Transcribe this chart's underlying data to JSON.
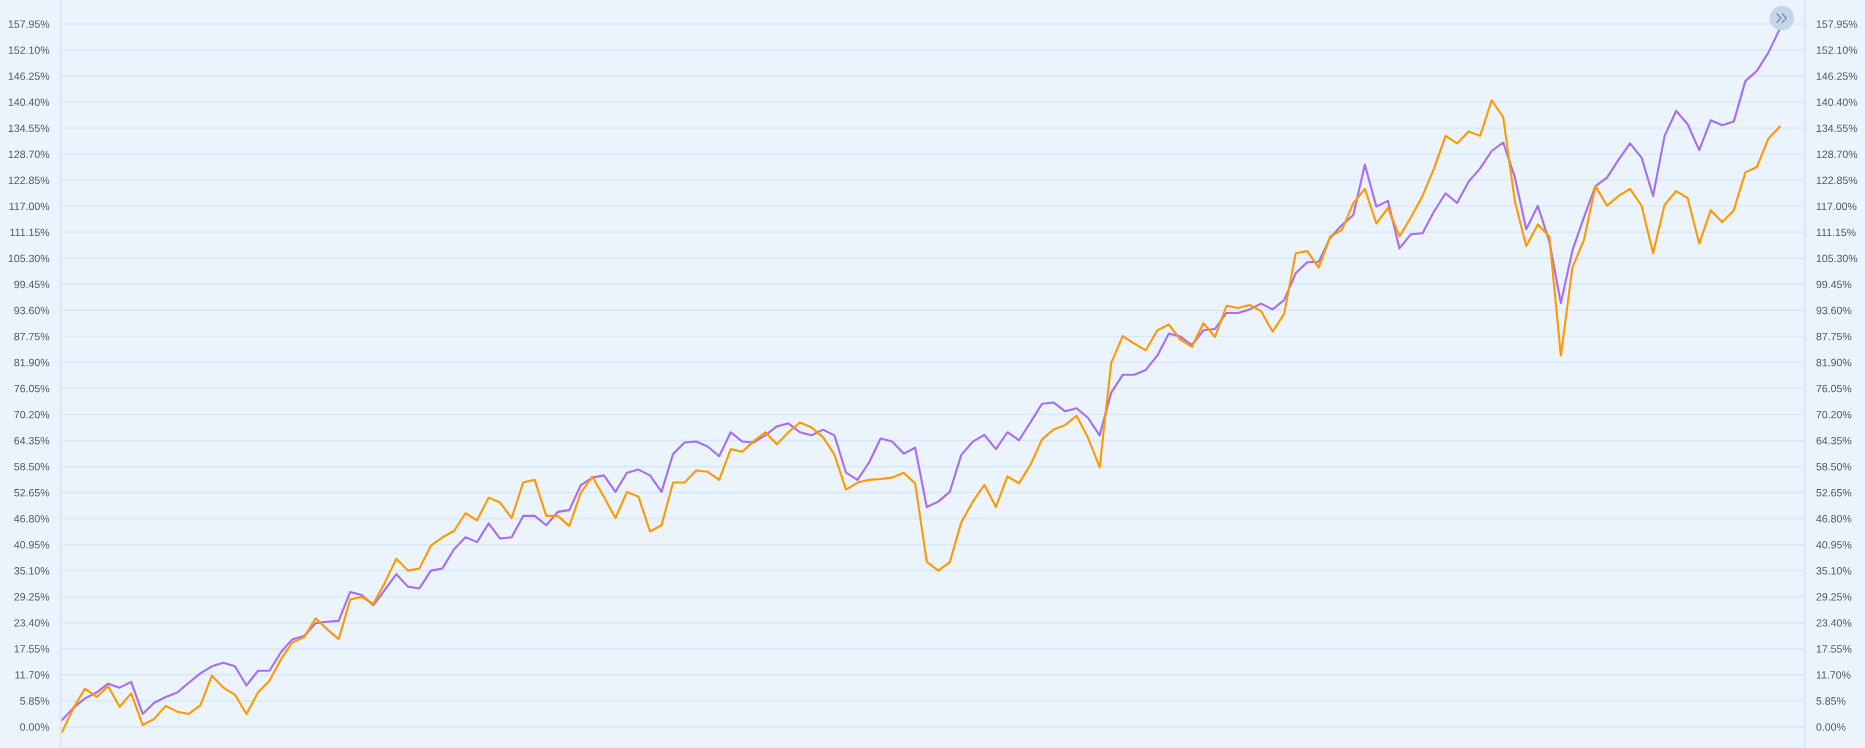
{
  "chart_data": {
    "type": "line",
    "categories": [
      null,
      null,
      null,
      null,
      null,
      null,
      null,
      null,
      null,
      null,
      null,
      null,
      null,
      null,
      null,
      null,
      null,
      null,
      null,
      null,
      null,
      null,
      null,
      null,
      null,
      null,
      null,
      null,
      null,
      null,
      null,
      null,
      null,
      null,
      null,
      null,
      null,
      null,
      null,
      null,
      null,
      null,
      null,
      null,
      null,
      null,
      null,
      null,
      null,
      null,
      null,
      null,
      null,
      null,
      null,
      null,
      null,
      null,
      null,
      null,
      null,
      null,
      null,
      null,
      null,
      null,
      null,
      null,
      null,
      null,
      null,
      null,
      null,
      null,
      null,
      null,
      null,
      null,
      null,
      null,
      null,
      null,
      null,
      null,
      null,
      null,
      null,
      null,
      null,
      null,
      null,
      null,
      null,
      null,
      null,
      null,
      null,
      null,
      null,
      null,
      null,
      null,
      null,
      null,
      null,
      null,
      null,
      null,
      null,
      null,
      null,
      null,
      null,
      null,
      null,
      null,
      null,
      null,
      null,
      null,
      null,
      null,
      null,
      null,
      null,
      null,
      null,
      null,
      null,
      null,
      null,
      null,
      null,
      null,
      null,
      null,
      null,
      null,
      null,
      null,
      null,
      null,
      null,
      null,
      null,
      null,
      null,
      null,
      null,
      null
    ],
    "series": [
      {
        "color": "#a66ef0",
        "values": [
          1.5,
          4.3,
          6.4,
          7.7,
          9.7,
          8.8,
          10.1,
          2.9,
          5.4,
          6.7,
          7.7,
          9.9,
          12.0,
          13.6,
          14.4,
          13.6,
          9.3,
          12.6,
          12.6,
          16.8,
          19.7,
          20.4,
          23.3,
          23.6,
          23.8,
          30.3,
          29.6,
          27.3,
          30.8,
          34.3,
          31.5,
          31.1,
          35.1,
          35.6,
          39.9,
          42.6,
          41.5,
          45.7,
          42.3,
          42.6,
          47.4,
          47.4,
          45.3,
          48.3,
          48.7,
          54.3,
          56.0,
          56.5,
          52.8,
          57.1,
          57.8,
          56.5,
          52.8,
          61.3,
          63.9,
          64.1,
          63.0,
          60.8,
          66.2,
          64.1,
          63.9,
          65.5,
          67.5,
          68.2,
          66.2,
          65.5,
          66.8,
          65.5,
          57.1,
          55.5,
          59.4,
          64.8,
          64.1,
          61.4,
          62.7,
          49.4,
          50.6,
          52.8,
          61.1,
          64.1,
          65.6,
          62.4,
          66.2,
          64.4,
          68.4,
          72.6,
          72.9,
          70.9,
          71.6,
          69.4,
          65.5,
          75.1,
          79.1,
          79.1,
          80.2,
          83.4,
          88.4,
          87.7,
          85.8,
          89.1,
          89.4,
          93.0,
          93.0,
          93.8,
          95.1,
          93.8,
          95.9,
          101.9,
          104.4,
          104.5,
          109.9,
          112.7,
          115.0,
          126.3,
          116.9,
          118.2,
          107.5,
          110.7,
          110.9,
          115.8,
          119.9,
          117.7,
          122.5,
          125.5,
          129.4,
          131.3,
          123.6,
          111.8,
          117.1,
          109.1,
          95.2,
          107.0,
          114.5,
          121.5,
          123.4,
          127.4,
          131.1,
          127.9,
          119.3,
          132.8,
          138.4,
          135.4,
          129.6,
          136.3,
          135.2,
          136.0,
          145.1,
          147.4,
          151.5,
          156.9
        ]
      },
      {
        "color": "#ff9900",
        "values": [
          -1.2,
          4.3,
          8.6,
          6.7,
          9.1,
          4.5,
          7.5,
          0.4,
          1.8,
          4.7,
          3.4,
          2.9,
          4.8,
          11.5,
          8.8,
          7.2,
          2.9,
          7.7,
          10.4,
          15.2,
          19.0,
          20.1,
          24.4,
          21.9,
          19.7,
          28.6,
          29.2,
          27.6,
          32.4,
          37.8,
          35.1,
          35.6,
          40.7,
          42.6,
          44.0,
          48.0,
          46.4,
          51.5,
          50.4,
          46.9,
          54.9,
          55.5,
          47.4,
          47.4,
          45.1,
          52.6,
          56.2,
          51.7,
          46.9,
          52.8,
          51.7,
          43.9,
          45.3,
          54.9,
          54.9,
          57.6,
          57.3,
          55.5,
          62.4,
          61.8,
          64.2,
          66.2,
          63.5,
          66.2,
          68.4,
          67.3,
          65.1,
          61.1,
          53.3,
          54.9,
          55.5,
          55.7,
          56.0,
          57.1,
          54.7,
          37.1,
          35.1,
          37.0,
          46.0,
          50.6,
          54.4,
          49.4,
          56.3,
          54.7,
          58.9,
          64.6,
          66.8,
          67.8,
          69.9,
          64.9,
          58.3,
          81.8,
          87.8,
          86.1,
          84.6,
          89.1,
          90.4,
          87.0,
          85.4,
          90.7,
          87.6,
          94.6,
          94.1,
          94.8,
          93.4,
          88.8,
          92.8,
          106.4,
          106.9,
          103.2,
          110.2,
          111.6,
          117.7,
          120.9,
          113.1,
          116.6,
          110.2,
          114.5,
          119.3,
          125.5,
          132.8,
          131.1,
          133.8,
          132.8,
          140.8,
          137.0,
          118.2,
          108.0,
          112.9,
          110.2,
          83.4,
          103.2,
          109.4,
          121.5,
          117.1,
          119.3,
          120.9,
          117.1,
          106.4,
          117.3,
          120.4,
          118.8,
          108.6,
          116.1,
          113.4,
          116.1,
          124.6,
          125.8,
          132.2,
          134.9
        ]
      }
    ],
    "ylim": [
      -4.76,
      163.33
    ],
    "yticks": [
      {
        "value": 0,
        "label": "0.00%"
      },
      {
        "value": 5.85,
        "label": "5.85%"
      },
      {
        "value": 11.7,
        "label": "11.70%"
      },
      {
        "value": 17.55,
        "label": "17.55%"
      },
      {
        "value": 23.4,
        "label": "23.40%"
      },
      {
        "value": 29.25,
        "label": "29.25%"
      },
      {
        "value": 35.1,
        "label": "35.10%"
      },
      {
        "value": 40.95,
        "label": "40.95%"
      },
      {
        "value": 46.8,
        "label": "46.80%"
      },
      {
        "value": 52.65,
        "label": "52.65%"
      },
      {
        "value": 58.5,
        "label": "58.50%"
      },
      {
        "value": 64.35,
        "label": "64.35%"
      },
      {
        "value": 70.2,
        "label": "70.20%"
      },
      {
        "value": 76.05,
        "label": "76.05%"
      },
      {
        "value": 81.9,
        "label": "81.90%"
      },
      {
        "value": 87.75,
        "label": "87.75%"
      },
      {
        "value": 93.6,
        "label": "93.60%"
      },
      {
        "value": 99.45,
        "label": "99.45%"
      },
      {
        "value": 105.3,
        "label": "105.30%"
      },
      {
        "value": 111.15,
        "label": "111.15%"
      },
      {
        "value": 117,
        "label": "117.00%"
      },
      {
        "value": 122.85,
        "label": "122.85%"
      },
      {
        "value": 128.7,
        "label": "128.70%"
      },
      {
        "value": 134.55,
        "label": "134.55%"
      },
      {
        "value": 140.4,
        "label": "140.40%"
      },
      {
        "value": 146.25,
        "label": "146.25%"
      },
      {
        "value": 152.1,
        "label": "152.10%"
      },
      {
        "value": 157.95,
        "label": "157.95%"
      }
    ],
    "y2lim": [
      -4.76,
      163.33
    ],
    "y2ticks": [
      {
        "value": 0,
        "label": "0.00%"
      },
      {
        "value": 5.85,
        "label": "5.85%"
      },
      {
        "value": 11.7,
        "label": "11.70%"
      },
      {
        "value": 17.55,
        "label": "17.55%"
      },
      {
        "value": 23.4,
        "label": "23.40%"
      },
      {
        "value": 29.25,
        "label": "29.25%"
      },
      {
        "value": 35.1,
        "label": "35.10%"
      },
      {
        "value": 40.95,
        "label": "40.95%"
      },
      {
        "value": 46.8,
        "label": "46.80%"
      },
      {
        "value": 52.65,
        "label": "52.65%"
      },
      {
        "value": 58.5,
        "label": "58.50%"
      },
      {
        "value": 64.35,
        "label": "64.35%"
      },
      {
        "value": 70.2,
        "label": "70.20%"
      },
      {
        "value": 76.05,
        "label": "76.05%"
      },
      {
        "value": 81.9,
        "label": "81.90%"
      },
      {
        "value": 87.75,
        "label": "87.75%"
      },
      {
        "value": 93.6,
        "label": "93.60%"
      },
      {
        "value": 99.45,
        "label": "99.45%"
      },
      {
        "value": 105.3,
        "label": "105.30%"
      },
      {
        "value": 111.15,
        "label": "111.15%"
      },
      {
        "value": 117,
        "label": "117.00%"
      },
      {
        "value": 122.85,
        "label": "122.85%"
      },
      {
        "value": 128.7,
        "label": "128.70%"
      },
      {
        "value": 134.55,
        "label": "134.55%"
      },
      {
        "value": 140.4,
        "label": "140.40%"
      },
      {
        "value": 146.25,
        "label": "146.25%"
      },
      {
        "value": 152.1,
        "label": "152.10%"
      },
      {
        "value": 157.95,
        "label": "157.95%"
      }
    ],
    "grid": "y",
    "tick_labels": "y"
  }
}
